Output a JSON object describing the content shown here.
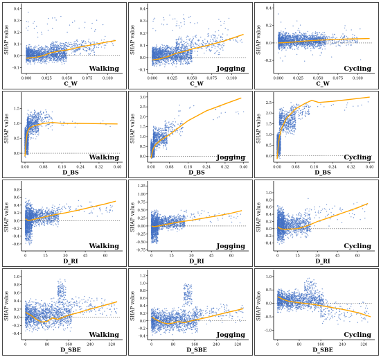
{
  "chart_data": [
    {
      "type": "scatter",
      "row": 0,
      "col": 0,
      "title": "Walking",
      "xlabel": "C_W",
      "ylabel": "SHAP value",
      "xlim": [
        -0.006,
        0.115
      ],
      "ylim": [
        -0.15,
        0.42
      ],
      "xticks": [
        0,
        0.025,
        0.05,
        0.075,
        0.1
      ],
      "xtick_labels": [
        "0.000",
        "0.025",
        "0.050",
        "0.075",
        "0.100"
      ],
      "yticks": [
        -0.1,
        0,
        0.1,
        0.2,
        0.3,
        0.4
      ],
      "ytick_labels": [
        "-0.1",
        "0.0",
        "0.1",
        "0.2",
        "0.3",
        "0.4"
      ],
      "trend_x": [
        0,
        0.01,
        0.02,
        0.03,
        0.04,
        0.05,
        0.07,
        0.09,
        0.11
      ],
      "trend_y": [
        -0.02,
        -0.015,
        0,
        0.025,
        0.04,
        0.05,
        0.08,
        0.105,
        0.13
      ],
      "cloud": [
        {
          "x0": 0,
          "x1": 0.05,
          "y0": -0.08,
          "y1": 0.1,
          "n": 1400
        },
        {
          "x0": 0.03,
          "x1": 0.085,
          "y0": -0.02,
          "y1": 0.15,
          "n": 250
        },
        {
          "x0": 0.06,
          "x1": 0.112,
          "y0": 0.02,
          "y1": 0.18,
          "n": 60
        },
        {
          "x0": 0,
          "x1": 0.1,
          "y0": 0.12,
          "y1": 0.4,
          "n": 35
        }
      ]
    },
    {
      "type": "scatter",
      "row": 0,
      "col": 1,
      "title": "Jogging",
      "xlabel": "C_W",
      "ylabel": "SHAP value",
      "xlim": [
        -0.006,
        0.118
      ],
      "ylim": [
        -0.13,
        0.42
      ],
      "xticks": [
        0,
        0.025,
        0.05,
        0.075,
        0.1
      ],
      "xtick_labels": [
        "0.000",
        "0.025",
        "0.050",
        "0.075",
        "0.100"
      ],
      "yticks": [
        -0.1,
        0,
        0.1,
        0.2,
        0.3,
        0.4
      ],
      "ytick_labels": [
        "-0.1",
        "0.0",
        "0.1",
        "0.2",
        "0.3",
        "0.4"
      ],
      "trend_x": [
        0,
        0.01,
        0.02,
        0.03,
        0.04,
        0.05,
        0.07,
        0.09,
        0.115
      ],
      "trend_y": [
        -0.02,
        -0.01,
        0.01,
        0.035,
        0.05,
        0.07,
        0.1,
        0.135,
        0.19
      ],
      "cloud": [
        {
          "x0": 0,
          "x1": 0.05,
          "y0": -0.08,
          "y1": 0.12,
          "n": 1400
        },
        {
          "x0": 0.03,
          "x1": 0.09,
          "y0": 0,
          "y1": 0.2,
          "n": 250
        },
        {
          "x0": 0.07,
          "x1": 0.115,
          "y0": 0.05,
          "y1": 0.25,
          "n": 60
        },
        {
          "x0": 0,
          "x1": 0.1,
          "y0": 0.15,
          "y1": 0.4,
          "n": 40
        }
      ]
    },
    {
      "type": "scatter",
      "row": 0,
      "col": 2,
      "title": "Cycling",
      "xlabel": "C_W",
      "ylabel": "SHAP value",
      "xlim": [
        -0.006,
        0.118
      ],
      "ylim": [
        -0.35,
        0.42
      ],
      "xticks": [
        0,
        0.025,
        0.05,
        0.075,
        0.1
      ],
      "xtick_labels": [
        "0.000",
        "0.025",
        "0.050",
        "0.075",
        "0.100"
      ],
      "yticks": [
        -0.2,
        0,
        0.2,
        0.4
      ],
      "ytick_labels": [
        "-0.2",
        "0.0",
        "0.2",
        "0.4"
      ],
      "trend_x": [
        0,
        0.01,
        0.02,
        0.03,
        0.05,
        0.07,
        0.09,
        0.115
      ],
      "trend_y": [
        0,
        0.005,
        0.01,
        0.02,
        0.03,
        0.04,
        0.045,
        0.05
      ],
      "cloud": [
        {
          "x0": 0,
          "x1": 0.06,
          "y0": -0.1,
          "y1": 0.15,
          "n": 1500
        },
        {
          "x0": 0.04,
          "x1": 0.1,
          "y0": -0.05,
          "y1": 0.12,
          "n": 200
        },
        {
          "x0": 0,
          "x1": 0.11,
          "y0": -0.3,
          "y1": 0.4,
          "n": 50
        }
      ]
    },
    {
      "type": "scatter",
      "row": 1,
      "col": 0,
      "title": "Walking",
      "xlabel": "D_BS",
      "ylabel": "SHAP value",
      "xlim": [
        -0.015,
        0.41
      ],
      "ylim": [
        -0.3,
        1.95
      ],
      "xticks": [
        0,
        0.08,
        0.16,
        0.24,
        0.32,
        0.4
      ],
      "xtick_labels": [
        "0.00",
        "0.08",
        "0.16",
        "0.24",
        "0.32",
        "0.40"
      ],
      "yticks": [
        0,
        0.5,
        1,
        1.5
      ],
      "ytick_labels": [
        "0.0",
        "0.5",
        "1.0",
        "1.5"
      ],
      "trend_x": [
        0,
        0.005,
        0.01,
        0.02,
        0.04,
        0.08,
        0.12,
        0.16,
        0.24,
        0.32,
        0.4
      ],
      "trend_y": [
        -0.1,
        0.4,
        0.7,
        0.85,
        0.92,
        1.0,
        1.03,
        1.0,
        1.0,
        0.99,
        0.98
      ],
      "cloud": [
        {
          "x0": 0,
          "x1": 0.015,
          "y0": -0.2,
          "y1": 1.0,
          "n": 900
        },
        {
          "x0": 0.01,
          "x1": 0.06,
          "y0": 0.4,
          "y1": 1.5,
          "n": 500
        },
        {
          "x0": 0.04,
          "x1": 0.12,
          "y0": 0.7,
          "y1": 1.6,
          "n": 120
        },
        {
          "x0": 0.1,
          "x1": 0.4,
          "y0": 0.8,
          "y1": 1.2,
          "n": 25
        }
      ]
    },
    {
      "type": "scatter",
      "row": 1,
      "col": 1,
      "title": "Jogging",
      "xlabel": "D_BS",
      "ylabel": "SHAP value",
      "xlim": [
        -0.015,
        0.41
      ],
      "ylim": [
        -0.3,
        3.1
      ],
      "xticks": [
        0,
        0.08,
        0.16,
        0.24,
        0.32,
        0.4
      ],
      "xtick_labels": [
        "0.00",
        "0.08",
        "0.16",
        "0.24",
        "0.32",
        "0.40"
      ],
      "yticks": [
        0,
        0.5,
        1,
        1.5,
        2,
        2.5,
        3
      ],
      "ytick_labels": [
        "0.0",
        "0.5",
        "1.0",
        "1.5",
        "2.0",
        "2.5",
        "3.0"
      ],
      "trend_x": [
        0,
        0.005,
        0.01,
        0.02,
        0.04,
        0.08,
        0.12,
        0.16,
        0.24,
        0.32,
        0.39
      ],
      "trend_y": [
        -0.1,
        0.2,
        0.4,
        0.6,
        0.8,
        1.1,
        1.45,
        1.8,
        2.3,
        2.65,
        2.95
      ],
      "cloud": [
        {
          "x0": 0,
          "x1": 0.015,
          "y0": -0.2,
          "y1": 0.9,
          "n": 900
        },
        {
          "x0": 0.01,
          "x1": 0.07,
          "y0": 0.2,
          "y1": 1.6,
          "n": 500
        },
        {
          "x0": 0.06,
          "x1": 0.14,
          "y0": 0.8,
          "y1": 2.0,
          "n": 100
        },
        {
          "x0": 0.12,
          "x1": 0.4,
          "y0": 1.5,
          "y1": 3.0,
          "n": 20
        }
      ]
    },
    {
      "type": "scatter",
      "row": 1,
      "col": 2,
      "title": "Cycling",
      "xlabel": "D_BS",
      "ylabel": "SHAP value",
      "xlim": [
        -0.015,
        0.41
      ],
      "ylim": [
        -0.3,
        2.85
      ],
      "xticks": [
        0,
        0.08,
        0.16,
        0.24,
        0.32,
        0.4
      ],
      "xtick_labels": [
        "0.00",
        "0.08",
        "0.16",
        "0.24",
        "0.32",
        "0.40"
      ],
      "yticks": [
        0,
        0.5,
        1,
        1.5,
        2,
        2.5
      ],
      "ytick_labels": [
        "0.0",
        "0.5",
        "1.0",
        "1.5",
        "2.0",
        "2.5"
      ],
      "trend_x": [
        0,
        0.005,
        0.01,
        0.02,
        0.04,
        0.08,
        0.12,
        0.15,
        0.18,
        0.24,
        0.32,
        0.4
      ],
      "trend_y": [
        -0.15,
        0.5,
        0.9,
        1.3,
        1.75,
        2.2,
        2.45,
        2.6,
        2.5,
        2.55,
        2.65,
        2.75
      ],
      "cloud": [
        {
          "x0": 0,
          "x1": 0.015,
          "y0": -0.2,
          "y1": 1.2,
          "n": 900
        },
        {
          "x0": 0.01,
          "x1": 0.08,
          "y0": 0.8,
          "y1": 2.4,
          "n": 500
        },
        {
          "x0": 0.06,
          "x1": 0.14,
          "y0": 1.6,
          "y1": 2.6,
          "n": 100
        },
        {
          "x0": 0.12,
          "x1": 0.4,
          "y0": 2.0,
          "y1": 2.8,
          "n": 20
        }
      ]
    },
    {
      "type": "scatter",
      "row": 2,
      "col": 0,
      "title": "Walking",
      "xlabel": "D_RI",
      "ylabel": "SHAP value",
      "xlim": [
        -3,
        71
      ],
      "ylim": [
        -0.78,
        0.95
      ],
      "xticks": [
        0,
        15,
        30,
        45,
        60
      ],
      "xtick_labels": [
        "0",
        "15",
        "30",
        "45",
        "60"
      ],
      "yticks": [
        -0.6,
        -0.4,
        -0.2,
        0,
        0.2,
        0.4,
        0.6,
        0.8
      ],
      "ytick_labels": [
        "-0.6",
        "-0.4",
        "-0.2",
        "0.0",
        "0.2",
        "0.4",
        "0.6",
        "0.8"
      ],
      "trend_x": [
        0,
        2,
        5,
        10,
        15,
        20,
        30,
        40,
        50,
        60,
        68
      ],
      "trend_y": [
        0.05,
        0.0,
        0.02,
        0.06,
        0.1,
        0.14,
        0.2,
        0.27,
        0.35,
        0.43,
        0.5
      ],
      "cloud": [
        {
          "x0": 0,
          "x1": 5,
          "y0": -0.7,
          "y1": 0.6,
          "n": 900
        },
        {
          "x0": 3,
          "x1": 25,
          "y0": -0.2,
          "y1": 0.4,
          "n": 800
        },
        {
          "x0": 20,
          "x1": 68,
          "y0": 0.05,
          "y1": 0.55,
          "n": 70
        }
      ]
    },
    {
      "type": "scatter",
      "row": 2,
      "col": 1,
      "title": "Jogging",
      "xlabel": "D_RI",
      "ylabel": "SHAP value",
      "xlim": [
        -3,
        71
      ],
      "ylim": [
        -0.78,
        1.32
      ],
      "xticks": [
        0,
        15,
        30,
        45,
        60
      ],
      "xtick_labels": [
        "0",
        "15",
        "30",
        "45",
        "60"
      ],
      "yticks": [
        -0.75,
        -0.5,
        -0.25,
        0,
        0.25,
        0.5,
        0.75,
        1,
        1.25
      ],
      "ytick_labels": [
        "-0.75",
        "-0.50",
        "-0.25",
        "0.00",
        "0.25",
        "0.50",
        "0.75",
        "1.00",
        "1.25"
      ],
      "trend_x": [
        0,
        2,
        5,
        10,
        15,
        20,
        30,
        40,
        50,
        60,
        68
      ],
      "trend_y": [
        0,
        -0.02,
        0,
        0.04,
        0.08,
        0.12,
        0.18,
        0.25,
        0.32,
        0.4,
        0.48
      ],
      "cloud": [
        {
          "x0": 0,
          "x1": 5,
          "y0": -0.7,
          "y1": 0.6,
          "n": 900
        },
        {
          "x0": 3,
          "x1": 25,
          "y0": -0.2,
          "y1": 0.4,
          "n": 800
        },
        {
          "x0": 20,
          "x1": 68,
          "y0": 0.05,
          "y1": 0.55,
          "n": 70
        }
      ]
    },
    {
      "type": "scatter",
      "row": 2,
      "col": 2,
      "title": "Cycling",
      "xlabel": "D_RI",
      "ylabel": "SHAP value",
      "xlim": [
        -3,
        71
      ],
      "ylim": [
        -0.62,
        1.25
      ],
      "xticks": [
        0,
        15,
        30,
        45,
        60
      ],
      "xtick_labels": [
        "0",
        "15",
        "30",
        "45",
        "60"
      ],
      "yticks": [
        -0.4,
        -0.2,
        0,
        0.2,
        0.4,
        0.6,
        0.8,
        1
      ],
      "ytick_labels": [
        "-0.4",
        "-0.2",
        "0.0",
        "0.2",
        "0.4",
        "0.6",
        "0.8",
        "1.0"
      ],
      "trend_x": [
        0,
        2,
        5,
        10,
        15,
        20,
        25,
        30,
        40,
        50,
        60,
        68
      ],
      "trend_y": [
        0.05,
        0.0,
        -0.02,
        -0.01,
        0.0,
        0.05,
        0.12,
        0.2,
        0.32,
        0.45,
        0.58,
        0.7
      ],
      "cloud": [
        {
          "x0": 0,
          "x1": 5,
          "y0": -0.5,
          "y1": 0.7,
          "n": 900
        },
        {
          "x0": 3,
          "x1": 25,
          "y0": -0.3,
          "y1": 0.5,
          "n": 800
        },
        {
          "x0": 20,
          "x1": 68,
          "y0": 0.0,
          "y1": 0.9,
          "n": 70
        }
      ]
    },
    {
      "type": "scatter",
      "row": 3,
      "col": 0,
      "title": "Walking",
      "xlabel": "D_SBE",
      "ylabel": "SHAP value",
      "xlim": [
        -15,
        350
      ],
      "ylim": [
        -0.55,
        1.1
      ],
      "xticks": [
        0,
        80,
        160,
        240,
        320
      ],
      "xtick_labels": [
        "0",
        "80",
        "160",
        "240",
        "320"
      ],
      "yticks": [
        -0.4,
        -0.2,
        0,
        0.2,
        0.4,
        0.6,
        0.8,
        1
      ],
      "ytick_labels": [
        "-0.4",
        "-0.2",
        "0.0",
        "0.2",
        "0.4",
        "0.6",
        "0.8",
        "1.0"
      ],
      "trend_x": [
        0,
        20,
        40,
        60,
        80,
        100,
        120,
        160,
        200,
        240,
        280,
        340
      ],
      "trend_y": [
        0.12,
        0.05,
        -0.05,
        -0.12,
        -0.1,
        -0.02,
        -0.05,
        0.05,
        0.12,
        0.2,
        0.27,
        0.38
      ],
      "cloud": [
        {
          "x0": 0,
          "x1": 170,
          "y0": -0.4,
          "y1": 0.5,
          "n": 1300
        },
        {
          "x0": 120,
          "x1": 150,
          "y0": 0.2,
          "y1": 1.0,
          "n": 120
        },
        {
          "x0": 160,
          "x1": 340,
          "y0": -0.1,
          "y1": 0.6,
          "n": 150
        }
      ]
    },
    {
      "type": "scatter",
      "row": 3,
      "col": 1,
      "title": "Jogging",
      "xlabel": "D_SBE",
      "ylabel": "SHAP value",
      "xlim": [
        -15,
        350
      ],
      "ylim": [
        -0.5,
        1.28
      ],
      "xticks": [
        0,
        80,
        160,
        240,
        320
      ],
      "xtick_labels": [
        "0",
        "80",
        "160",
        "240",
        "320"
      ],
      "yticks": [
        -0.4,
        -0.2,
        0,
        0.2,
        0.4,
        0.6,
        0.8,
        1,
        1.2
      ],
      "ytick_labels": [
        "-0.4",
        "-0.2",
        "0.0",
        "0.2",
        "0.4",
        "0.6",
        "0.8",
        "1.0",
        "1.2"
      ],
      "trend_x": [
        0,
        20,
        40,
        60,
        80,
        100,
        120,
        160,
        200,
        240,
        280,
        340
      ],
      "trend_y": [
        0.1,
        0.02,
        -0.05,
        -0.08,
        -0.06,
        -0.02,
        -0.05,
        0.02,
        0.08,
        0.15,
        0.22,
        0.32
      ],
      "cloud": [
        {
          "x0": 0,
          "x1": 170,
          "y0": -0.4,
          "y1": 0.4,
          "n": 1300
        },
        {
          "x0": 120,
          "x1": 150,
          "y0": 0.2,
          "y1": 1.15,
          "n": 120
        },
        {
          "x0": 160,
          "x1": 340,
          "y0": -0.1,
          "y1": 0.5,
          "n": 150
        }
      ]
    },
    {
      "type": "scatter",
      "row": 3,
      "col": 2,
      "title": "Cycling",
      "xlabel": "D_SBE",
      "ylabel": "SHAP value",
      "xlim": [
        -15,
        350
      ],
      "ylim": [
        -1.35,
        1.15
      ],
      "xticks": [
        0,
        80,
        160,
        240,
        320
      ],
      "xtick_labels": [
        "0",
        "80",
        "160",
        "240",
        "320"
      ],
      "yticks": [
        -1,
        -0.5,
        0,
        0.5,
        1
      ],
      "ytick_labels": [
        "-1.0",
        "-0.5",
        "0.0",
        "0.5",
        "1.0"
      ],
      "trend_x": [
        0,
        20,
        40,
        60,
        80,
        100,
        140,
        180,
        240,
        300,
        345
      ],
      "trend_y": [
        0.25,
        0.15,
        0.08,
        0.05,
        0.02,
        0.0,
        -0.05,
        -0.12,
        -0.22,
        -0.35,
        -0.5
      ],
      "cloud": [
        {
          "x0": 0,
          "x1": 170,
          "y0": -0.4,
          "y1": 0.6,
          "n": 1300
        },
        {
          "x0": 100,
          "x1": 150,
          "y0": 0.2,
          "y1": 1.0,
          "n": 80
        },
        {
          "x0": 160,
          "x1": 340,
          "y0": -0.9,
          "y1": 0.3,
          "n": 150
        }
      ]
    }
  ],
  "colors": {
    "points": "#4472c4",
    "trend": "#ffa500",
    "zero_line": "#555555",
    "panel_border": "#444444"
  }
}
